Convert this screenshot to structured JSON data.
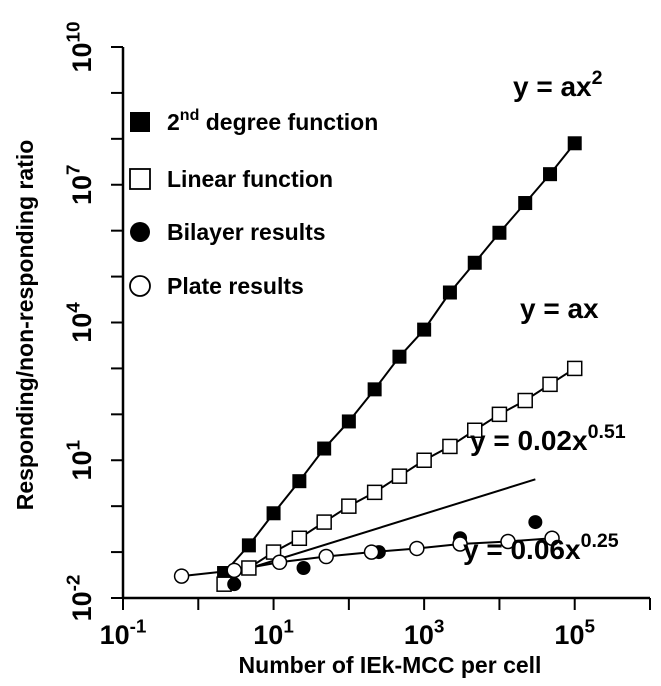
{
  "chart_data": {
    "type": "scatter",
    "x_scale": "log",
    "y_scale": "log",
    "xlabel": "Number of IEk-MCC per cell",
    "ylabel": "Responding/non-responding ratio",
    "xlim": [
      0.1,
      1000000
    ],
    "ylim": [
      0.01,
      10000000000
    ],
    "x_ticks": [
      {
        "value": 0.1,
        "base": "10",
        "exp": "-1"
      },
      {
        "value": 10,
        "base": "10",
        "exp": "1"
      },
      {
        "value": 1000,
        "base": "10",
        "exp": "3"
      },
      {
        "value": 100000,
        "base": "10",
        "exp": "5"
      }
    ],
    "y_ticks": [
      {
        "value": 0.01,
        "base": "10",
        "exp": "-2"
      },
      {
        "value": 10,
        "base": "10",
        "exp": "1"
      },
      {
        "value": 10000,
        "base": "10",
        "exp": "4"
      },
      {
        "value": 10000000,
        "base": "10",
        "exp": "7"
      },
      {
        "value": 10000000000,
        "base": "10",
        "exp": "10"
      }
    ],
    "legend_position": "top-left",
    "series": [
      {
        "name": "2nd degree function",
        "legend_main": "2",
        "legend_sup": "nd",
        "legend_rest": " degree function",
        "marker": "filled-square",
        "x": [
          2.2,
          4.7,
          10,
          22,
          47,
          100,
          220,
          470,
          1000,
          2200,
          4700,
          10000,
          22000,
          47000,
          100000
        ],
        "y": [
          0.035,
          0.14,
          0.7,
          3.5,
          18,
          70,
          350,
          1800,
          7000,
          45000,
          200000,
          900000,
          4000000,
          17000000,
          80000000
        ]
      },
      {
        "name": "Linear function",
        "legend_main": "Linear function",
        "marker": "open-square",
        "x": [
          2.2,
          4.7,
          10,
          22,
          47,
          100,
          220,
          470,
          1000,
          2200,
          4700,
          10000,
          22000,
          47000,
          100000
        ],
        "y": [
          0.02,
          0.045,
          0.1,
          0.2,
          0.45,
          1,
          2,
          4.5,
          10,
          20,
          45,
          100,
          200,
          450,
          1000
        ]
      },
      {
        "name": "Bilayer results",
        "legend_main": "Bilayer results",
        "marker": "filled-circle",
        "x": [
          3,
          25,
          250,
          3000,
          30000
        ],
        "y": [
          0.02,
          0.045,
          0.1,
          0.2,
          0.45
        ],
        "fit": {
          "label": "y = 0.02x",
          "exp": "0.51",
          "a": 0.02,
          "b": 0.51,
          "from": 3,
          "to": 30000
        }
      },
      {
        "name": "Plate results",
        "legend_main": "Plate results",
        "marker": "open-circle",
        "x": [
          0.6,
          3,
          12,
          50,
          200,
          800,
          3000,
          13000,
          50000
        ],
        "y": [
          0.03,
          0.04,
          0.06,
          0.08,
          0.1,
          0.12,
          0.15,
          0.17,
          0.2
        ]
      }
    ],
    "annotations": [
      {
        "label": "y = ax",
        "exp": "2"
      },
      {
        "label": "y = ax",
        "exp": ""
      },
      {
        "label": "y = 0.02x",
        "exp": "0.51"
      },
      {
        "label": "y = 0.06x",
        "exp": "0.25"
      }
    ]
  }
}
